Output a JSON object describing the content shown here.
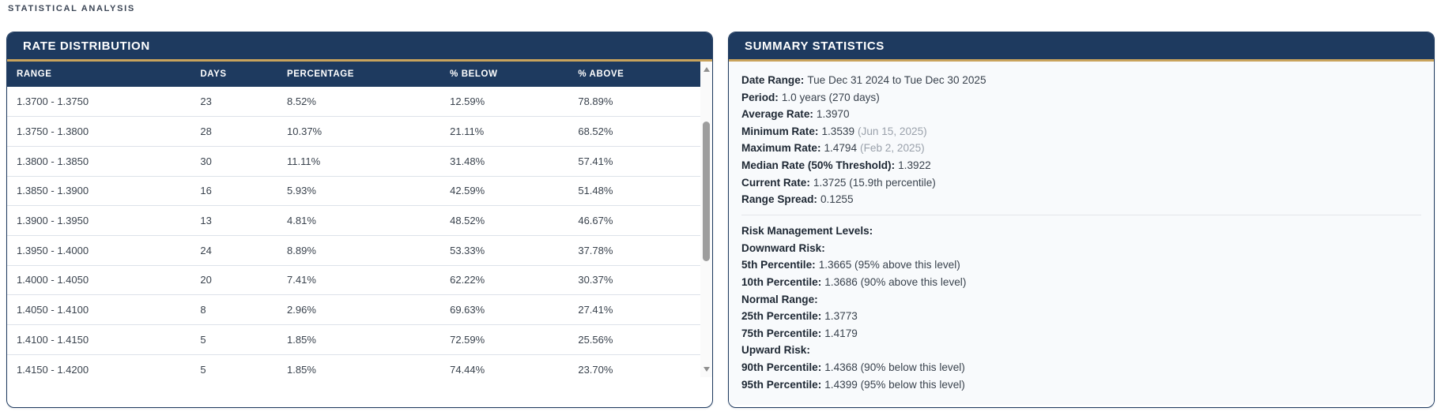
{
  "page": {
    "section_title": "STATISTICAL ANALYSIS"
  },
  "colors": {
    "navy": "#1e3a5f",
    "gold": "#c9a35c",
    "body_bg_right": "#f8fafc",
    "row_border": "#dde2e9",
    "cell_text": "#39424d",
    "label_text": "#1d2733",
    "muted_text": "#9aa1ab",
    "scroll_thumb": "#9d9d9d"
  },
  "rate_distribution": {
    "title": "RATE DISTRIBUTION",
    "columns": [
      "RANGE",
      "DAYS",
      "PERCENTAGE",
      "% BELOW",
      "% ABOVE"
    ],
    "rows": [
      [
        "1.3700 - 1.3750",
        "23",
        "8.52%",
        "12.59%",
        "78.89%"
      ],
      [
        "1.3750 - 1.3800",
        "28",
        "10.37%",
        "21.11%",
        "68.52%"
      ],
      [
        "1.3800 - 1.3850",
        "30",
        "11.11%",
        "31.48%",
        "57.41%"
      ],
      [
        "1.3850 - 1.3900",
        "16",
        "5.93%",
        "42.59%",
        "51.48%"
      ],
      [
        "1.3900 - 1.3950",
        "13",
        "4.81%",
        "48.52%",
        "46.67%"
      ],
      [
        "1.3950 - 1.4000",
        "24",
        "8.89%",
        "53.33%",
        "37.78%"
      ],
      [
        "1.4000 - 1.4050",
        "20",
        "7.41%",
        "62.22%",
        "30.37%"
      ],
      [
        "1.4050 - 1.4100",
        "8",
        "2.96%",
        "69.63%",
        "27.41%"
      ],
      [
        "1.4100 - 1.4150",
        "5",
        "1.85%",
        "72.59%",
        "25.56%"
      ],
      [
        "1.4150 - 1.4200",
        "5",
        "1.85%",
        "74.44%",
        "23.70%"
      ]
    ],
    "scrollbar": {
      "up_icon": "triangle-up",
      "down_icon": "triangle-down"
    }
  },
  "summary": {
    "title": "SUMMARY STATISTICS",
    "lines": [
      {
        "label": "Date Range:",
        "value": "Tue Dec 31 2024 to Tue Dec 30 2025",
        "muted": ""
      },
      {
        "label": "Period:",
        "value": "1.0 years (270 days)",
        "muted": ""
      },
      {
        "label": "Average Rate:",
        "value": "1.3970",
        "muted": ""
      },
      {
        "label": "Minimum Rate:",
        "value": "1.3539",
        "muted": "(Jun 15, 2025)"
      },
      {
        "label": "Maximum Rate:",
        "value": "1.4794",
        "muted": "(Feb 2, 2025)"
      },
      {
        "label": "Median Rate (50% Threshold):",
        "value": "1.3922",
        "muted": ""
      },
      {
        "label": "Current Rate:",
        "value": "1.3725 (15.9th percentile)",
        "muted": ""
      },
      {
        "label": "Range Spread:",
        "value": "0.1255",
        "muted": ""
      },
      {
        "divider": true
      },
      {
        "label": "Risk Management Levels:",
        "value": "",
        "muted": ""
      },
      {
        "label": "Downward Risk:",
        "value": "",
        "muted": ""
      },
      {
        "label": "5th Percentile:",
        "value": "1.3665 (95% above this level)",
        "muted": ""
      },
      {
        "label": "10th Percentile:",
        "value": "1.3686 (90% above this level)",
        "muted": ""
      },
      {
        "label": "Normal Range:",
        "value": "",
        "muted": ""
      },
      {
        "label": "25th Percentile:",
        "value": "1.3773",
        "muted": ""
      },
      {
        "label": "75th Percentile:",
        "value": "1.4179",
        "muted": ""
      },
      {
        "label": "Upward Risk:",
        "value": "",
        "muted": ""
      },
      {
        "label": "90th Percentile:",
        "value": "1.4368 (90% below this level)",
        "muted": ""
      },
      {
        "label": "95th Percentile:",
        "value": "1.4399 (95% below this level)",
        "muted": ""
      }
    ]
  }
}
